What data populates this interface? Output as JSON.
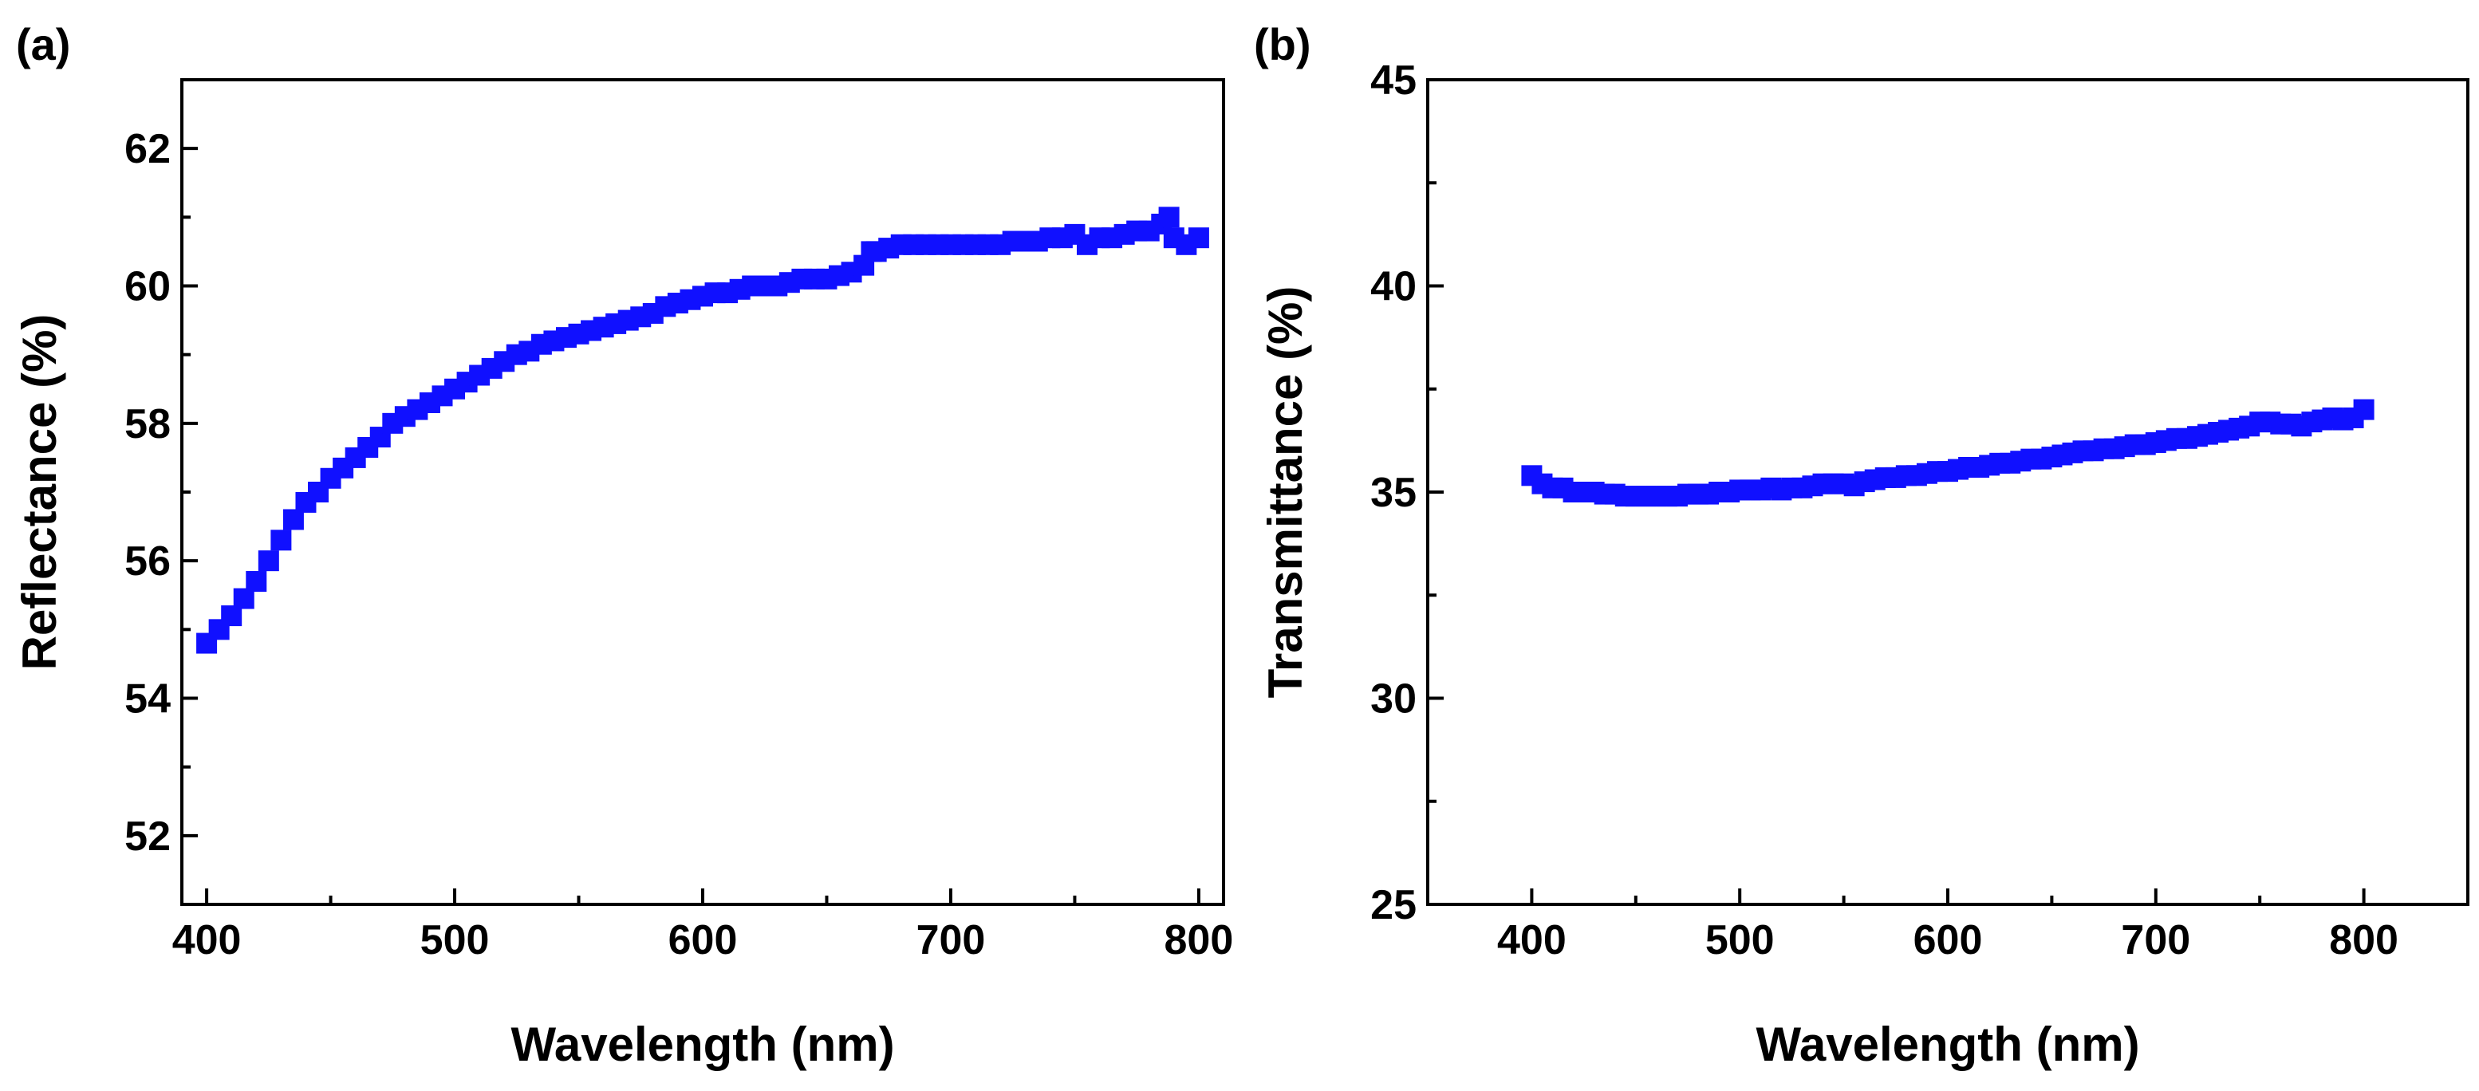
{
  "colors": {
    "series": "#1010ff",
    "axis": "#000000",
    "background": "#ffffff"
  },
  "chart_data": [
    {
      "type": "scatter",
      "panel_label": "(a)",
      "title": "",
      "xlabel": "Wavelength (nm)",
      "ylabel": "Reflectance (%)",
      "xlim": [
        390,
        810
      ],
      "ylim": [
        51,
        63
      ],
      "xticks": [
        "400",
        "500",
        "600",
        "700",
        "800"
      ],
      "yticks": [
        "52",
        "54",
        "56",
        "58",
        "60",
        "62"
      ],
      "marker": "square",
      "series": [
        {
          "name": "Reflectance",
          "x": [
            400,
            405,
            410,
            415,
            420,
            425,
            430,
            435,
            440,
            445,
            450,
            455,
            460,
            465,
            470,
            475,
            480,
            485,
            490,
            495,
            500,
            505,
            510,
            515,
            520,
            525,
            530,
            535,
            540,
            545,
            550,
            555,
            560,
            565,
            570,
            575,
            580,
            585,
            590,
            595,
            600,
            605,
            610,
            615,
            620,
            625,
            630,
            635,
            640,
            645,
            650,
            655,
            660,
            665,
            668,
            670,
            675,
            680,
            685,
            690,
            695,
            700,
            705,
            710,
            715,
            720,
            725,
            730,
            735,
            740,
            745,
            750,
            755,
            760,
            765,
            770,
            775,
            780,
            785,
            788,
            790,
            795,
            800
          ],
          "y": [
            54.8,
            55.0,
            55.2,
            55.45,
            55.7,
            56.0,
            56.3,
            56.6,
            56.85,
            57.0,
            57.2,
            57.35,
            57.5,
            57.65,
            57.8,
            58.0,
            58.1,
            58.2,
            58.3,
            58.4,
            58.5,
            58.6,
            58.7,
            58.8,
            58.9,
            59.0,
            59.05,
            59.15,
            59.2,
            59.25,
            59.3,
            59.35,
            59.4,
            59.45,
            59.5,
            59.55,
            59.6,
            59.7,
            59.75,
            59.8,
            59.85,
            59.9,
            59.9,
            59.95,
            60.0,
            60.0,
            60.0,
            60.05,
            60.1,
            60.1,
            60.1,
            60.15,
            60.2,
            60.3,
            60.5,
            60.5,
            60.55,
            60.6,
            60.6,
            60.6,
            60.6,
            60.6,
            60.6,
            60.6,
            60.6,
            60.6,
            60.65,
            60.65,
            60.65,
            60.7,
            60.7,
            60.75,
            60.6,
            60.7,
            60.7,
            60.75,
            60.8,
            60.8,
            60.9,
            61.0,
            60.7,
            60.6,
            60.7
          ]
        }
      ]
    },
    {
      "type": "scatter",
      "panel_label": "(b)",
      "title": "",
      "xlabel": "Wavelength (nm)",
      "ylabel": "Transmittance (%)",
      "xlim": [
        350,
        850
      ],
      "ylim": [
        25,
        45
      ],
      "xticks": [
        "400",
        "500",
        "600",
        "700",
        "800"
      ],
      "yticks": [
        "25",
        "30",
        "35",
        "40",
        "45"
      ],
      "marker": "square",
      "series": [
        {
          "name": "Transmittance",
          "x": [
            400,
            405,
            410,
            415,
            420,
            425,
            430,
            435,
            440,
            445,
            450,
            455,
            460,
            465,
            470,
            475,
            480,
            485,
            490,
            495,
            500,
            505,
            510,
            515,
            520,
            525,
            530,
            535,
            540,
            545,
            550,
            555,
            560,
            565,
            570,
            575,
            580,
            585,
            590,
            595,
            600,
            605,
            610,
            615,
            620,
            625,
            630,
            635,
            640,
            645,
            650,
            655,
            660,
            665,
            670,
            675,
            680,
            685,
            690,
            695,
            700,
            705,
            710,
            715,
            720,
            725,
            730,
            735,
            740,
            745,
            750,
            755,
            760,
            765,
            770,
            775,
            780,
            785,
            790,
            795,
            800
          ],
          "y": [
            35.4,
            35.2,
            35.1,
            35.1,
            35.0,
            35.0,
            35.0,
            34.95,
            34.95,
            34.9,
            34.9,
            34.9,
            34.9,
            34.9,
            34.9,
            34.95,
            34.95,
            34.95,
            35.0,
            35.0,
            35.05,
            35.05,
            35.05,
            35.1,
            35.05,
            35.1,
            35.1,
            35.15,
            35.2,
            35.2,
            35.2,
            35.15,
            35.25,
            35.3,
            35.35,
            35.35,
            35.4,
            35.4,
            35.45,
            35.5,
            35.5,
            35.55,
            35.6,
            35.6,
            35.65,
            35.7,
            35.7,
            35.75,
            35.8,
            35.8,
            35.85,
            35.9,
            35.95,
            36.0,
            36.0,
            36.05,
            36.05,
            36.1,
            36.15,
            36.15,
            36.2,
            36.25,
            36.3,
            36.3,
            36.35,
            36.4,
            36.45,
            36.5,
            36.55,
            36.6,
            36.7,
            36.7,
            36.65,
            36.65,
            36.6,
            36.7,
            36.75,
            36.8,
            36.75,
            36.8,
            37.0
          ]
        }
      ]
    }
  ]
}
